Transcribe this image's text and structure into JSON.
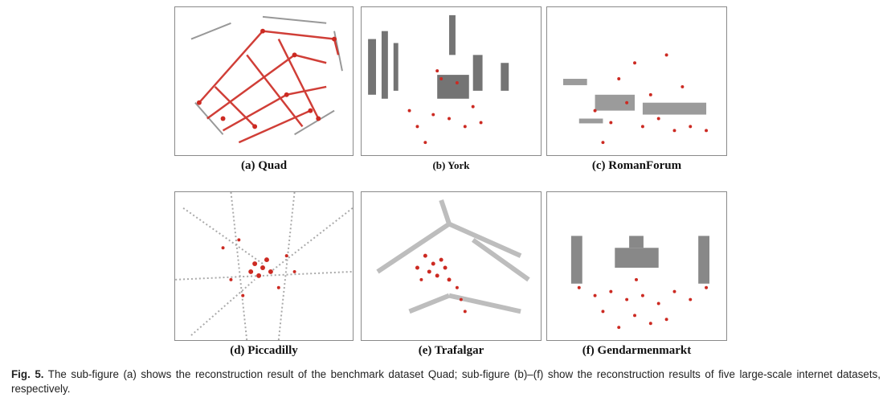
{
  "figure": {
    "panels": [
      {
        "id": "a",
        "label": "(a) Quad"
      },
      {
        "id": "b",
        "label": "(b) York"
      },
      {
        "id": "c",
        "label": "(c) RomanForum"
      },
      {
        "id": "d",
        "label": "(d) Piccadilly"
      },
      {
        "id": "e",
        "label": "(e) Trafalgar"
      },
      {
        "id": "f",
        "label": "(f) Gendarmenmarkt"
      }
    ],
    "caption_label": "Fig. 5.",
    "caption_text": "The sub-figure (a) shows the reconstruction result of the benchmark dataset Quad; sub-figure (b)–(f) show the reconstruction results of five large-scale internet datasets, respectively."
  },
  "colors": {
    "camera_points": "#cc2a22",
    "scene_points": "#3a3a3a"
  }
}
